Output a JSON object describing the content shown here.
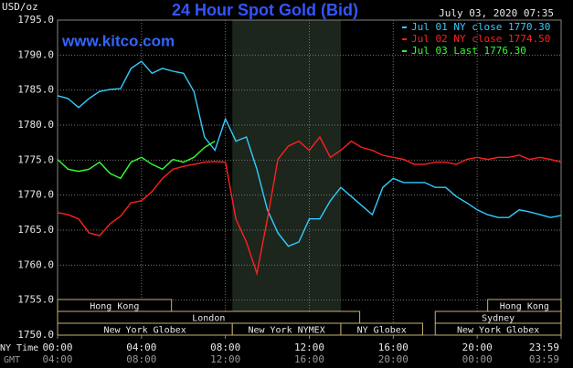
{
  "chart_data": {
    "type": "line",
    "title": "24 Hour Spot Gold (Bid)",
    "subtitle": "www.kitco.com",
    "timestamp": "July 03, 2020 07:35",
    "y_label": "USD/oz",
    "x_time_labels": [
      "NY Time",
      "GMT"
    ],
    "x": [
      0,
      0.5,
      1,
      1.5,
      2,
      2.5,
      3,
      3.5,
      4,
      4.5,
      5,
      5.5,
      6,
      6.5,
      7,
      7.5,
      8,
      8.5,
      9,
      9.5,
      10,
      10.5,
      11,
      11.5,
      12,
      12.5,
      13,
      13.5,
      14,
      14.5,
      15,
      15.5,
      16,
      16.5,
      17,
      17.5,
      18,
      18.5,
      19,
      19.5,
      20,
      20.5,
      21,
      21.5,
      22,
      22.5,
      23,
      23.5,
      24
    ],
    "series": [
      {
        "name": "Jul 01 NY close 1770.30",
        "color": "#33ccff",
        "values": [
          1784.2,
          1783.8,
          1782.5,
          1783.8,
          1784.8,
          1785.1,
          1785.2,
          1788.1,
          1789.1,
          1787.4,
          1788.1,
          1787.7,
          1787.4,
          1784.8,
          1778.3,
          1776.4,
          1780.9,
          1777.7,
          1778.3,
          1773.7,
          1767.9,
          1764.6,
          1762.7,
          1763.3,
          1766.6,
          1766.6,
          1769.2,
          1771.1,
          1769.8,
          1768.5,
          1767.2,
          1771.1,
          1772.4,
          1771.8,
          1771.8,
          1771.8,
          1771.1,
          1771.1,
          1769.8,
          1768.9,
          1767.9,
          1767.2,
          1766.8,
          1766.8,
          1767.9,
          1767.6,
          1767.2,
          1766.8,
          1767.1
        ]
      },
      {
        "name": "Jul 02 NY close 1774.50",
        "color": "#ff2020",
        "values": [
          1767.5,
          1767.2,
          1766.6,
          1764.6,
          1764.2,
          1765.9,
          1767.0,
          1768.9,
          1769.2,
          1770.5,
          1772.4,
          1773.7,
          1774.1,
          1774.4,
          1774.7,
          1774.8,
          1774.7,
          1766.6,
          1763.3,
          1758.8,
          1766.6,
          1775.1,
          1777.0,
          1777.7,
          1776.4,
          1778.3,
          1775.4,
          1776.4,
          1777.7,
          1776.8,
          1776.4,
          1775.7,
          1775.4,
          1775.1,
          1774.4,
          1774.4,
          1774.7,
          1774.7,
          1774.4,
          1775.1,
          1775.4,
          1775.1,
          1775.4,
          1775.4,
          1775.7,
          1775.1,
          1775.4,
          1775.1,
          1774.7
        ]
      },
      {
        "name": "Jul 03 Last 1776.30",
        "color": "#33ff33",
        "values": [
          1775.1,
          1773.7,
          1773.4,
          1773.7,
          1774.7,
          1773.1,
          1772.4,
          1774.7,
          1775.4,
          1774.4,
          1773.7,
          1775.1,
          1774.7,
          1775.4,
          1776.8,
          1777.7,
          null,
          null,
          null,
          null,
          null,
          null,
          null,
          null,
          null,
          null,
          null,
          null,
          null,
          null,
          null,
          null,
          null,
          null,
          null,
          null,
          null,
          null,
          null,
          null,
          null,
          null,
          null,
          null,
          null,
          null,
          null,
          null,
          null
        ]
      }
    ],
    "xlim": [
      0,
      24
    ],
    "ylim": [
      1750,
      1795
    ],
    "xticks": [
      {
        "value": 0,
        "label": "00:00"
      },
      {
        "value": 4,
        "label": "04:00"
      },
      {
        "value": 8,
        "label": "08:00"
      },
      {
        "value": 12,
        "label": "12:00"
      },
      {
        "value": 16,
        "label": "16:00"
      },
      {
        "value": 20,
        "label": "20:00"
      },
      {
        "value": 24,
        "label": "23:59"
      }
    ],
    "x_gmt_labels": [
      "04:00",
      "08:00",
      "12:00",
      "16:00",
      "20:00",
      "00:00",
      "03:59"
    ],
    "yticks": [
      {
        "value": 1750,
        "label": "1750.0"
      },
      {
        "value": 1755,
        "label": "1755.0"
      },
      {
        "value": 1760,
        "label": "1760.0"
      },
      {
        "value": 1765,
        "label": "1765.0"
      },
      {
        "value": 1770,
        "label": "1770.0"
      },
      {
        "value": 1775,
        "label": "1775.0"
      },
      {
        "value": 1780,
        "label": "1780.0"
      },
      {
        "value": 1785,
        "label": "1785.0"
      },
      {
        "value": 1790,
        "label": "1790.0"
      },
      {
        "value": 1795,
        "label": "1795.0"
      }
    ],
    "grid": true,
    "legend": "top-right",
    "session_rows": [
      [
        {
          "label": "Hong Kong",
          "start": 0,
          "end": 5.43
        },
        {
          "label": "Hong Kong",
          "start": 20.5,
          "end": 24
        }
      ],
      [
        {
          "label": "London",
          "start": 0,
          "end": 14.4
        },
        {
          "label": "Sydney",
          "start": 18,
          "end": 24
        }
      ],
      [
        {
          "label": "New York Globex",
          "start": 0,
          "end": 8.33
        },
        {
          "label": "New York NYMEX",
          "start": 8.33,
          "end": 13.5,
          "highlight": true
        },
        {
          "label": "NY Globex",
          "start": 13.5,
          "end": 17.4
        },
        {
          "label": "New York Globex",
          "start": 18,
          "end": 24
        }
      ]
    ]
  }
}
